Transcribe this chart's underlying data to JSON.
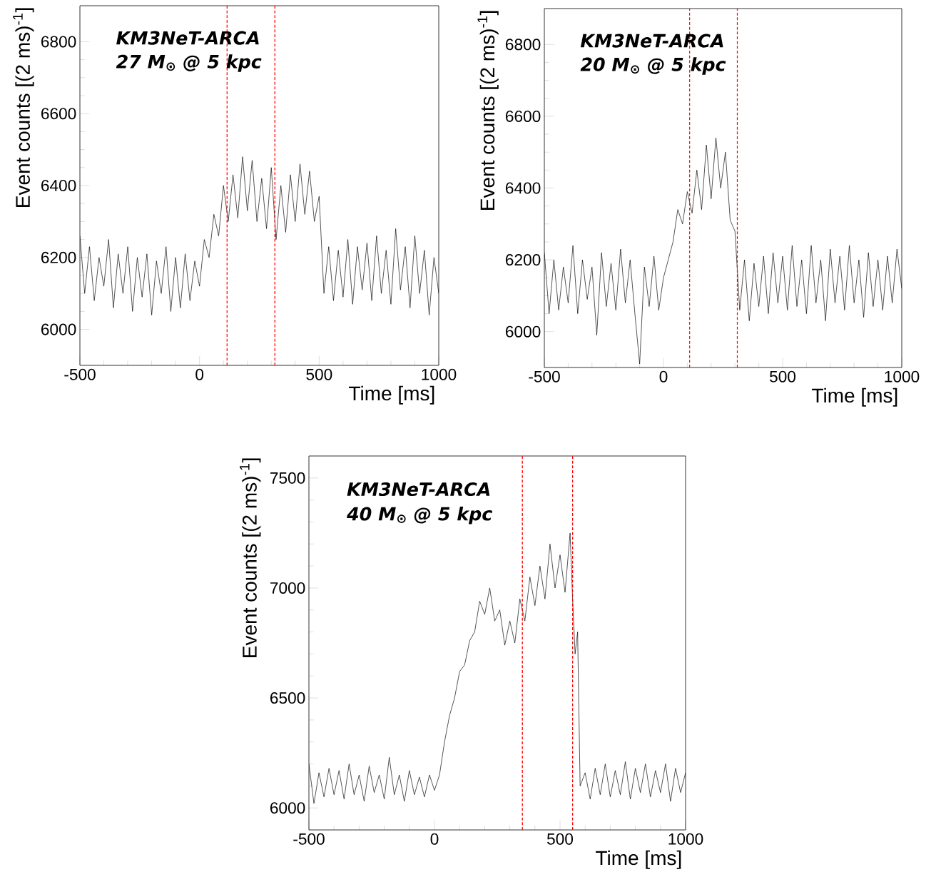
{
  "chart_data": [
    {
      "type": "line",
      "xlabel": "Time [ms]",
      "ylabel": "Event counts [(2 ms)$^{-1}$]",
      "annotations": [
        "KM3NeT-ARCA",
        "27 M$_{⊙}$ @ 5 kpc"
      ],
      "xlim": [
        -500,
        1000
      ],
      "ylim": [
        5900,
        6900
      ],
      "xticks": [
        -500,
        0,
        500,
        1000
      ],
      "yticks": [
        6000,
        6200,
        6400,
        6600,
        6800
      ],
      "ref_lines": [
        {
          "axis": "x",
          "value": 115,
          "color": "#ff0000",
          "line_style": "dashed"
        },
        {
          "axis": "x",
          "value": 315,
          "color": "#ff0000",
          "line_style": "dashed"
        }
      ],
      "series": [
        {
          "color": "#000000",
          "x": [
            -500,
            -480,
            -460,
            -440,
            -420,
            -400,
            -380,
            -360,
            -340,
            -320,
            -300,
            -280,
            -260,
            -240,
            -220,
            -200,
            -180,
            -160,
            -140,
            -120,
            -100,
            -80,
            -60,
            -40,
            -20,
            0,
            20,
            40,
            60,
            80,
            100,
            120,
            140,
            160,
            180,
            200,
            220,
            240,
            260,
            280,
            300,
            320,
            340,
            360,
            380,
            400,
            420,
            440,
            460,
            480,
            500,
            520,
            540,
            560,
            580,
            600,
            620,
            640,
            660,
            680,
            700,
            720,
            740,
            760,
            780,
            800,
            820,
            840,
            860,
            880,
            900,
            920,
            940,
            960,
            980,
            1000
          ],
          "values": [
            6260,
            6100,
            6230,
            6080,
            6200,
            6120,
            6250,
            6060,
            6210,
            6100,
            6230,
            6050,
            6200,
            6090,
            6210,
            6040,
            6190,
            6100,
            6230,
            6050,
            6200,
            6060,
            6210,
            6080,
            6190,
            6120,
            6250,
            6200,
            6320,
            6260,
            6400,
            6300,
            6430,
            6310,
            6480,
            6330,
            6470,
            6300,
            6420,
            6280,
            6450,
            6250,
            6400,
            6270,
            6430,
            6300,
            6460,
            6320,
            6440,
            6300,
            6370,
            6100,
            6230,
            6080,
            6220,
            6090,
            6250,
            6070,
            6230,
            6110,
            6240,
            6080,
            6260,
            6100,
            6220,
            6070,
            6280,
            6110,
            6230,
            6060,
            6260,
            6100,
            6220,
            6040,
            6200,
            6100
          ]
        }
      ]
    },
    {
      "type": "line",
      "xlabel": "Time [ms]",
      "ylabel": "Event counts [(2 ms)$^{-1}$]",
      "annotations": [
        "KM3NeT-ARCA",
        "20 M$_{⊙}$ @ 5 kpc"
      ],
      "xlim": [
        -500,
        1000
      ],
      "ylim": [
        5900,
        6900
      ],
      "xticks": [
        -500,
        0,
        500,
        1000
      ],
      "yticks": [
        6000,
        6200,
        6400,
        6600,
        6800
      ],
      "ref_lines": [
        {
          "axis": "x",
          "value": 110,
          "color": "#ff0000",
          "line_style": "dashed"
        },
        {
          "axis": "x",
          "value": 310,
          "color": "#ff0000",
          "line_style": "dashed"
        }
      ],
      "series": [
        {
          "color": "#000000",
          "x": [
            -500,
            -480,
            -460,
            -440,
            -420,
            -400,
            -380,
            -360,
            -340,
            -320,
            -300,
            -280,
            -260,
            -240,
            -220,
            -200,
            -180,
            -160,
            -140,
            -120,
            -100,
            -80,
            -60,
            -40,
            -20,
            0,
            20,
            40,
            60,
            80,
            100,
            120,
            140,
            160,
            180,
            200,
            220,
            240,
            260,
            280,
            300,
            320,
            340,
            360,
            380,
            400,
            420,
            440,
            460,
            480,
            500,
            520,
            540,
            560,
            580,
            600,
            620,
            640,
            660,
            680,
            700,
            720,
            740,
            760,
            780,
            800,
            820,
            840,
            860,
            880,
            900,
            920,
            940,
            960,
            980,
            1000
          ],
          "values": [
            6220,
            6050,
            6200,
            6060,
            6180,
            6080,
            6240,
            6050,
            6200,
            6090,
            6180,
            5990,
            6220,
            6070,
            6190,
            6060,
            6230,
            6080,
            6200,
            6050,
            5910,
            6180,
            6070,
            6210,
            6060,
            6150,
            6200,
            6250,
            6340,
            6300,
            6390,
            6330,
            6450,
            6340,
            6520,
            6370,
            6540,
            6400,
            6500,
            6310,
            6280,
            6060,
            6200,
            6030,
            6190,
            6070,
            6210,
            6050,
            6220,
            6080,
            6210,
            6060,
            6240,
            6070,
            6200,
            6050,
            6240,
            6080,
            6200,
            6030,
            6230,
            6080,
            6210,
            6060,
            6240,
            6080,
            6200,
            6040,
            6220,
            6070,
            6200,
            6060,
            6210,
            6080,
            6230,
            6120
          ]
        }
      ]
    },
    {
      "type": "line",
      "xlabel": "Time [ms]",
      "ylabel": "Event counts [(2 ms)$^{-1}$]",
      "annotations": [
        "KM3NeT-ARCA",
        "40 M$_{⊙}$ @ 5 kpc"
      ],
      "xlim": [
        -500,
        1000
      ],
      "ylim": [
        5900,
        7600
      ],
      "xticks": [
        -500,
        0,
        500,
        1000
      ],
      "yticks": [
        6000,
        6500,
        7000,
        7500
      ],
      "ref_lines": [
        {
          "axis": "x",
          "value": 350,
          "color": "#ff0000",
          "line_style": "dashed"
        },
        {
          "axis": "x",
          "value": 550,
          "color": "#ff0000",
          "line_style": "dashed"
        }
      ],
      "series": [
        {
          "color": "#000000",
          "x": [
            -500,
            -480,
            -460,
            -440,
            -420,
            -400,
            -380,
            -360,
            -340,
            -320,
            -300,
            -280,
            -260,
            -240,
            -220,
            -200,
            -180,
            -160,
            -140,
            -120,
            -100,
            -80,
            -60,
            -40,
            -20,
            0,
            20,
            40,
            60,
            80,
            100,
            120,
            140,
            160,
            180,
            200,
            220,
            240,
            260,
            280,
            300,
            320,
            340,
            360,
            380,
            400,
            420,
            440,
            460,
            480,
            500,
            520,
            540,
            550,
            560,
            570,
            580,
            600,
            620,
            640,
            660,
            680,
            700,
            720,
            740,
            760,
            780,
            800,
            820,
            840,
            860,
            880,
            900,
            920,
            940,
            960,
            980,
            1000
          ],
          "values": [
            6200,
            6020,
            6160,
            6050,
            6180,
            6060,
            6170,
            6040,
            6200,
            6060,
            6150,
            6030,
            6190,
            6070,
            6150,
            6040,
            6230,
            6060,
            6150,
            6030,
            6170,
            6060,
            6140,
            6050,
            6150,
            6080,
            6150,
            6300,
            6420,
            6500,
            6620,
            6650,
            6760,
            6800,
            6940,
            6880,
            7000,
            6850,
            6900,
            6740,
            6850,
            6750,
            6950,
            6850,
            7050,
            6920,
            7100,
            6950,
            7200,
            7000,
            7150,
            6980,
            7250,
            6950,
            6700,
            6800,
            6100,
            6160,
            6040,
            6180,
            6060,
            6200,
            6050,
            6170,
            6060,
            6210,
            6040,
            6180,
            6070,
            6200,
            6050,
            6170,
            6070,
            6200,
            6030,
            6180,
            6070,
            6160
          ]
        }
      ]
    }
  ]
}
